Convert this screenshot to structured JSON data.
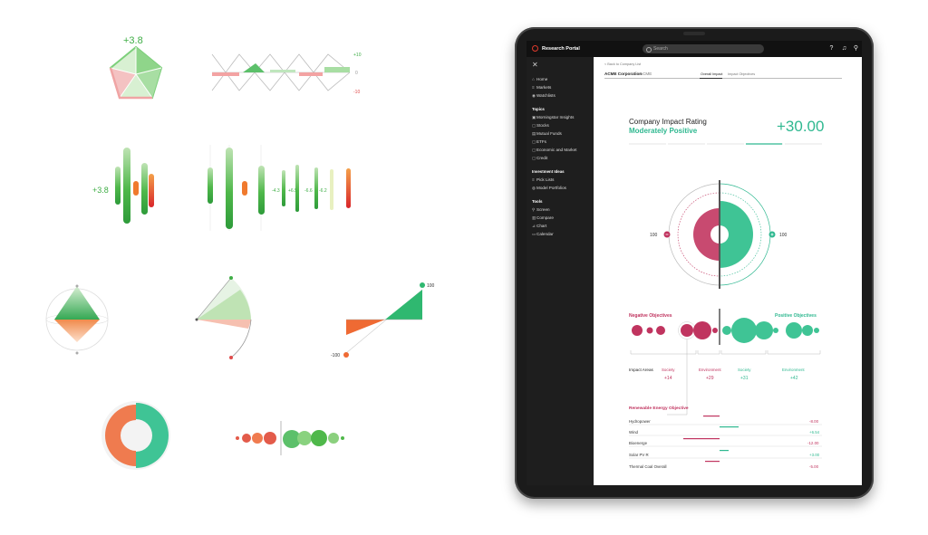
{
  "specimens": {
    "pentagon_value": "+3.8",
    "wave_axis": [
      "+10",
      "0",
      "-10"
    ],
    "bar_value": "+3.8",
    "bar_labels": [
      "-4.3",
      "+6.5",
      "-6.6",
      "-6.2"
    ],
    "slope_top": "100",
    "slope_bottom": "-100"
  },
  "topbar": {
    "brand": "Research Portal",
    "search_placeholder": "Search"
  },
  "sidebar": {
    "nav": [
      "Home",
      "Markets",
      "Watchlists"
    ],
    "topics_title": "Topics",
    "topics": [
      "Morningstar Insights",
      "Stocks",
      "Mutual Funds",
      "ETFs",
      "Economic and Market",
      "Credit"
    ],
    "ideas_title": "Investment Ideas",
    "ideas": [
      "Pick Lists",
      "Model Portfolios"
    ],
    "tools_title": "Tools",
    "tools": [
      "Screen",
      "Compare",
      "Chart",
      "Calendar"
    ]
  },
  "main": {
    "back": "< Back to Company List",
    "company": "ACME Corporation",
    "ticker": "ACME",
    "tabs": [
      "Overall Impact",
      "Impact Objectives"
    ],
    "rating_title": "Company Impact Rating",
    "rating_label": "Moderately Positive",
    "rating_value": "+30.00",
    "gauge_left": "100",
    "gauge_right": "100",
    "negative_title": "Negative Objectives",
    "positive_title": "Positive Objectives",
    "impact_areas_label": "Impact Areas",
    "areas": [
      {
        "name": "Society",
        "value": "+14"
      },
      {
        "name": "Environment",
        "value": "+29"
      },
      {
        "name": "Society",
        "value": "+31"
      },
      {
        "name": "Environment",
        "value": "+42"
      }
    ],
    "renewable_title": "Renewable Energy Objective",
    "renewable_rows": [
      {
        "label": "Hydropower",
        "value": "-8.00"
      },
      {
        "label": "Wind",
        "value": "+6.54"
      },
      {
        "label": "Bioenerge",
        "value": "-12.00"
      },
      {
        "label": "Solar PV R",
        "value": "+3.00"
      },
      {
        "label": "Thermal Coal Overall",
        "value": "-5.00"
      }
    ]
  }
}
